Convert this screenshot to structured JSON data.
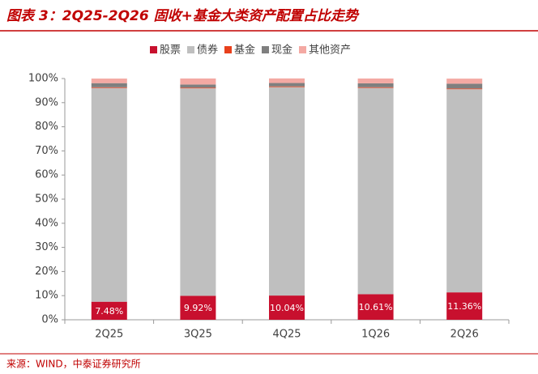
{
  "chart_data": {
    "type": "stacked-bar-percent",
    "title": "图表 3：2Q25-2Q26 固收+基金大类资产配置占比走势",
    "source": "来源：WIND，中泰证券研究所",
    "categories": [
      "2Q25",
      "3Q25",
      "4Q25",
      "1Q26",
      "2Q26"
    ],
    "series": [
      {
        "name": "股票",
        "color": "#c8102e",
        "values": [
          7.48,
          9.92,
          10.04,
          10.61,
          11.36
        ],
        "value_labels": [
          "7.48%",
          "9.92%",
          "10.04%",
          "10.61%",
          "11.36%"
        ]
      },
      {
        "name": "债券",
        "color": "#bfbfbf",
        "values": [
          88.6,
          86.0,
          86.4,
          85.5,
          84.2
        ]
      },
      {
        "name": "基金",
        "color": "#e8401c",
        "values": [
          0.3,
          0.3,
          0.3,
          0.3,
          0.3
        ]
      },
      {
        "name": "现金",
        "color": "#7f7f7f",
        "values": [
          1.7,
          1.3,
          1.4,
          1.6,
          2.0
        ]
      },
      {
        "name": "其他资产",
        "color": "#f4a9a3",
        "values": [
          1.9,
          2.5,
          1.9,
          2.0,
          2.1
        ]
      }
    ],
    "ylim": [
      0,
      100
    ],
    "yticks": [
      {
        "value": 0,
        "label": "0%"
      },
      {
        "value": 10,
        "label": "10%"
      },
      {
        "value": 20,
        "label": "20%"
      },
      {
        "value": 30,
        "label": "30%"
      },
      {
        "value": 40,
        "label": "40%"
      },
      {
        "value": 50,
        "label": "50%"
      },
      {
        "value": 60,
        "label": "60%"
      },
      {
        "value": 70,
        "label": "70%"
      },
      {
        "value": 80,
        "label": "80%"
      },
      {
        "value": 90,
        "label": "90%"
      },
      {
        "value": 100,
        "label": "100%"
      }
    ]
  }
}
